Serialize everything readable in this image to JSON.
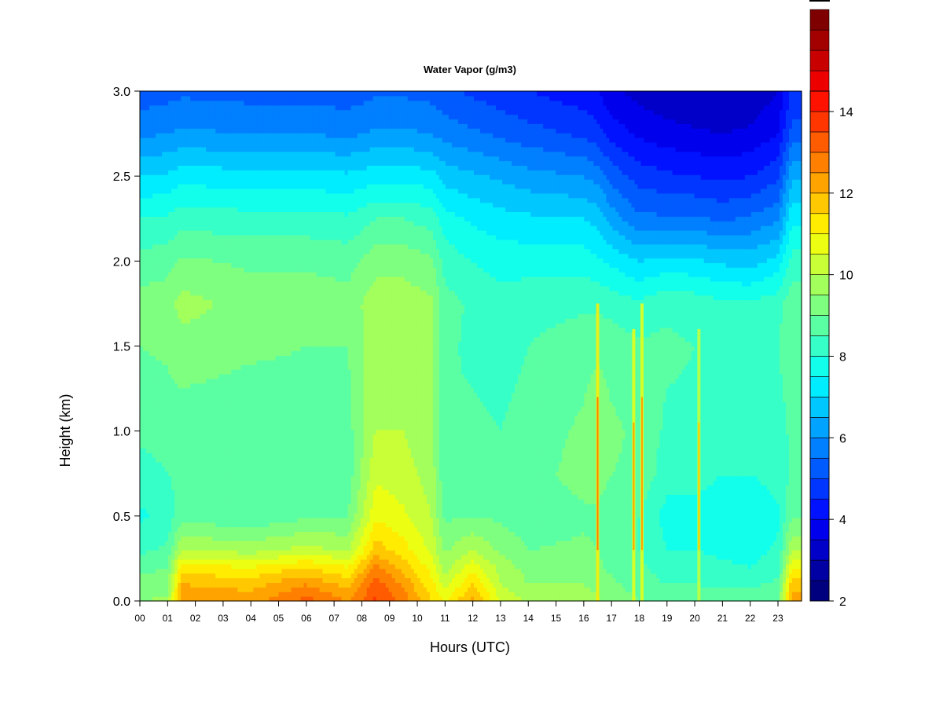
{
  "chart_data": {
    "type": "heatmap",
    "title": "Water Vapor (g/m3)",
    "xlabel": "Hours (UTC)",
    "ylabel": "Height (km)",
    "xlim": [
      0,
      23.85
    ],
    "ylim": [
      0,
      3.0
    ],
    "x_ticks": [
      0,
      1,
      2,
      3,
      4,
      5,
      6,
      7,
      8,
      9,
      10,
      11,
      12,
      13,
      14,
      15,
      16,
      17,
      18,
      19,
      20,
      21,
      22,
      23
    ],
    "x_tick_labels": [
      "00",
      "01",
      "02",
      "03",
      "04",
      "05",
      "06",
      "07",
      "08",
      "09",
      "10",
      "11",
      "12",
      "13",
      "14",
      "15",
      "16",
      "17",
      "18",
      "19",
      "20",
      "21",
      "22",
      "23"
    ],
    "y_ticks": [
      0,
      0.5,
      1.0,
      1.5,
      2.0,
      2.5,
      3.0
    ],
    "y_tick_labels": [
      "0.0",
      "0.5",
      "1.0",
      "1.5",
      "2.0",
      "2.5",
      "3.0"
    ],
    "colorbar": {
      "min": 2,
      "max": 14.5,
      "step": 0.5,
      "ticks": [
        2,
        4,
        6,
        8,
        10,
        12,
        14
      ],
      "tick_labels": [
        "2",
        "4",
        "6",
        "8",
        "10",
        "12",
        "14"
      ],
      "colors": [
        "#00007F",
        "#0000A3",
        "#0000C8",
        "#0000EC",
        "#0012FF",
        "#0036FF",
        "#005BFF",
        "#007FFF",
        "#00A3FF",
        "#00C8FF",
        "#00ECFF",
        "#12FFEC",
        "#36FFC8",
        "#5BFFA3",
        "#7FFF7F",
        "#A3FF5B",
        "#C8FF36",
        "#ECFF12",
        "#FFEC00",
        "#FFC800",
        "#FFA300",
        "#FF7F00",
        "#FF5B00",
        "#FF3600",
        "#FF1200",
        "#EC0000",
        "#C80000",
        "#A30000",
        "#7F0000"
      ]
    },
    "grid": false,
    "legend": "colorbar-right",
    "estimated_profile": {
      "heights_km": [
        0.0,
        0.1,
        0.2,
        0.3,
        0.5,
        0.75,
        1.0,
        1.5,
        1.75,
        2.0,
        2.25,
        2.5,
        2.75,
        3.0
      ],
      "hours": [
        0,
        1,
        1.5,
        4,
        6,
        7.5,
        8.5,
        9.5,
        10.5,
        11,
        12,
        13,
        14,
        16,
        16.5,
        17,
        18,
        19,
        20,
        21,
        22,
        23,
        23.5
      ],
      "values": [
        [
          9.5,
          9.6,
          12.5,
          12.3,
          13.2,
          12.5,
          13.6,
          12.8,
          11.5,
          11.0,
          12.2,
          10.5,
          9.9,
          9.8,
          9.6,
          9.3,
          9.0,
          8.9,
          8.9,
          8.8,
          8.8,
          8.9,
          12.3
        ],
        [
          9.2,
          9.3,
          12.0,
          11.8,
          12.5,
          11.8,
          13.3,
          12.4,
          11.2,
          10.3,
          11.5,
          10.0,
          9.5,
          9.5,
          9.3,
          9.1,
          8.8,
          8.5,
          8.5,
          8.4,
          8.4,
          8.6,
          11.8
        ],
        [
          8.8,
          9.0,
          11.2,
          11.0,
          11.5,
          11.0,
          12.6,
          11.8,
          10.8,
          9.8,
          10.8,
          9.8,
          9.3,
          9.3,
          9.1,
          8.9,
          8.6,
          8.2,
          8.2,
          8.1,
          8.0,
          8.3,
          11.0
        ],
        [
          8.4,
          8.6,
          10.0,
          9.8,
          10.2,
          9.9,
          11.8,
          11.2,
          10.4,
          9.4,
          10.0,
          9.4,
          9.0,
          9.1,
          9.0,
          8.8,
          8.5,
          8.0,
          8.0,
          7.9,
          7.8,
          8.1,
          10.0
        ],
        [
          7.9,
          8.2,
          8.8,
          8.6,
          8.9,
          9.0,
          10.9,
          10.6,
          10.0,
          8.9,
          9.0,
          8.9,
          8.7,
          8.9,
          8.9,
          8.7,
          8.5,
          7.8,
          7.8,
          7.7,
          7.6,
          7.9,
          8.9
        ],
        [
          8.3,
          8.5,
          8.6,
          8.5,
          8.6,
          8.7,
          10.4,
          10.2,
          9.8,
          8.6,
          8.8,
          8.7,
          8.8,
          9.2,
          9.2,
          9.0,
          8.9,
          8.2,
          8.2,
          8.0,
          8.0,
          8.2,
          8.6
        ],
        [
          8.6,
          8.7,
          8.7,
          8.6,
          8.7,
          8.8,
          10.0,
          10.0,
          9.7,
          8.5,
          8.6,
          8.5,
          8.7,
          9.1,
          9.4,
          9.1,
          8.9,
          8.4,
          8.4,
          8.2,
          8.2,
          8.3,
          8.6
        ],
        [
          9.0,
          9.1,
          9.3,
          9.1,
          9.0,
          9.0,
          9.9,
          9.9,
          9.7,
          8.6,
          8.4,
          8.3,
          8.5,
          8.8,
          8.9,
          8.8,
          8.6,
          8.6,
          8.5,
          8.4,
          8.4,
          8.5,
          8.8
        ],
        [
          9.2,
          9.3,
          9.7,
          9.3,
          9.3,
          9.2,
          9.8,
          9.8,
          9.6,
          8.7,
          8.4,
          8.2,
          8.3,
          8.4,
          8.4,
          8.3,
          8.1,
          8.4,
          8.3,
          8.1,
          8.1,
          8.3,
          8.9
        ],
        [
          8.7,
          8.8,
          9.1,
          8.9,
          8.9,
          8.8,
          9.3,
          9.3,
          9.1,
          8.3,
          8.0,
          7.8,
          7.8,
          7.8,
          7.6,
          7.4,
          7.0,
          7.2,
          7.1,
          6.9,
          6.8,
          7.2,
          8.2
        ],
        [
          8.0,
          8.1,
          8.3,
          8.2,
          8.2,
          8.1,
          8.5,
          8.5,
          8.3,
          7.7,
          7.4,
          7.2,
          7.1,
          7.0,
          6.8,
          6.3,
          5.6,
          5.6,
          5.6,
          5.4,
          5.6,
          5.9,
          7.4
        ],
        [
          7.0,
          7.1,
          7.3,
          7.2,
          7.2,
          7.1,
          7.3,
          7.3,
          7.2,
          6.8,
          6.6,
          6.4,
          6.2,
          6.0,
          5.8,
          5.3,
          4.8,
          4.6,
          4.5,
          4.4,
          4.5,
          4.9,
          6.4
        ],
        [
          5.9,
          6.0,
          6.1,
          6.0,
          6.0,
          5.9,
          6.1,
          6.1,
          6.0,
          5.8,
          5.6,
          5.4,
          5.2,
          4.9,
          4.7,
          4.3,
          3.9,
          3.7,
          3.6,
          3.5,
          3.6,
          4.0,
          5.2
        ],
        [
          5.2,
          5.3,
          5.4,
          5.3,
          5.3,
          5.2,
          5.4,
          5.4,
          5.3,
          5.1,
          4.9,
          4.7,
          4.5,
          4.2,
          4.0,
          3.6,
          3.3,
          3.1,
          3.0,
          3.0,
          3.1,
          3.5,
          4.6
        ]
      ]
    },
    "streaks": [
      {
        "hour": 16.5,
        "top_km": 1.75,
        "peak": 12.5
      },
      {
        "hour": 17.8,
        "top_km": 1.6,
        "peak": 12.0
      },
      {
        "hour": 18.1,
        "top_km": 1.75,
        "peak": 12.0
      },
      {
        "hour": 20.15,
        "top_km": 1.6,
        "peak": 11.5
      }
    ]
  }
}
